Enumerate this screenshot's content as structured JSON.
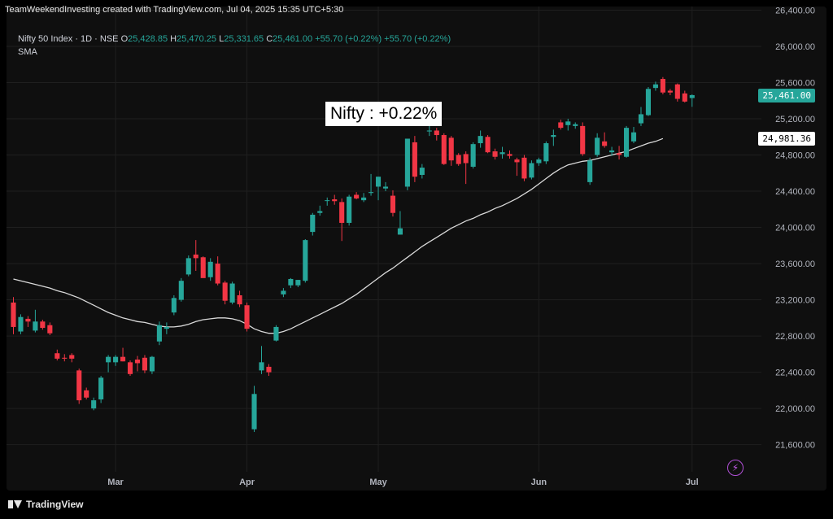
{
  "credit": "TeamWeekendInvesting created with TradingView.com, Jul 04, 2025 15:35 UTC+5:30",
  "legend": {
    "symbol": "Nifty 50 Index · 1D · NSE",
    "open_label": "O",
    "open": "25,428.85",
    "high_label": "H",
    "high": "25,470.25",
    "low_label": "L",
    "low": "25,331.65",
    "close_label": "C",
    "close": "25,461.00",
    "change": "+55.70 (+0.22%)",
    "change2": "+55.70 (+0.22%)",
    "indicator": "SMA"
  },
  "annotation": "Nifty : +0.22%",
  "last_price_tag": "25,461.00",
  "sma_tag": "24,981.36",
  "footer_brand": "TradingView",
  "chart_data": {
    "type": "candlestick",
    "x_tick_labels": [
      "Mar",
      "Apr",
      "May",
      "Jun",
      "Jul"
    ],
    "x_tick_index": [
      14,
      32,
      50,
      72,
      93
    ],
    "y_tick_labels": [
      "21,600.00",
      "22,000.00",
      "22,400.00",
      "22,800.00",
      "23,200.00",
      "23,600.00",
      "24,000.00",
      "24,400.00",
      "24,800.00",
      "25,200.00",
      "25,600.00",
      "26,000.00",
      "26,400.00"
    ],
    "y_tick_values": [
      21600,
      22000,
      22400,
      22800,
      23200,
      23600,
      24000,
      24400,
      24800,
      25200,
      25600,
      26000,
      26400
    ],
    "ylim": [
      21300,
      26440
    ],
    "grid": true,
    "colors": {
      "up": "#26a69a",
      "down": "#f23645",
      "sma": "#d9d9d9",
      "grid": "#1f1f1f",
      "axis_text": "#b2b5be"
    },
    "candles": [
      {
        "o": 23170,
        "h": 23230,
        "l": 22820,
        "c": 22900
      },
      {
        "o": 22850,
        "h": 23040,
        "l": 22820,
        "c": 23010
      },
      {
        "o": 22990,
        "h": 23020,
        "l": 22900,
        "c": 22960
      },
      {
        "o": 22860,
        "h": 23090,
        "l": 22840,
        "c": 22960
      },
      {
        "o": 22960,
        "h": 22980,
        "l": 22870,
        "c": 22890
      },
      {
        "o": 22920,
        "h": 22950,
        "l": 22810,
        "c": 22830
      },
      {
        "o": 22610,
        "h": 22650,
        "l": 22530,
        "c": 22550
      },
      {
        "o": 22560,
        "h": 22600,
        "l": 22520,
        "c": 22550
      },
      {
        "o": 22590,
        "h": 22610,
        "l": 22510,
        "c": 22550
      },
      {
        "o": 22420,
        "h": 22440,
        "l": 22050,
        "c": 22090
      },
      {
        "o": 22200,
        "h": 22230,
        "l": 22100,
        "c": 22120
      },
      {
        "o": 22000,
        "h": 22120,
        "l": 21980,
        "c": 22090
      },
      {
        "o": 22100,
        "h": 22360,
        "l": 22060,
        "c": 22340
      },
      {
        "o": 22510,
        "h": 22590,
        "l": 22400,
        "c": 22570
      },
      {
        "o": 22510,
        "h": 22590,
        "l": 22470,
        "c": 22570
      },
      {
        "o": 22570,
        "h": 22670,
        "l": 22520,
        "c": 22520
      },
      {
        "o": 22510,
        "h": 22530,
        "l": 22360,
        "c": 22380
      },
      {
        "o": 22540,
        "h": 22580,
        "l": 22410,
        "c": 22500
      },
      {
        "o": 22560,
        "h": 22590,
        "l": 22390,
        "c": 22420
      },
      {
        "o": 22410,
        "h": 22580,
        "l": 22380,
        "c": 22570
      },
      {
        "o": 22740,
        "h": 22960,
        "l": 22700,
        "c": 22920
      },
      {
        "o": 22880,
        "h": 22950,
        "l": 22820,
        "c": 22900
      },
      {
        "o": 23060,
        "h": 23250,
        "l": 23030,
        "c": 23220
      },
      {
        "o": 23200,
        "h": 23440,
        "l": 23180,
        "c": 23410
      },
      {
        "o": 23480,
        "h": 23690,
        "l": 23460,
        "c": 23660
      },
      {
        "o": 23700,
        "h": 23860,
        "l": 23520,
        "c": 23660
      },
      {
        "o": 23670,
        "h": 23680,
        "l": 23450,
        "c": 23440
      },
      {
        "o": 23450,
        "h": 23660,
        "l": 23410,
        "c": 23620
      },
      {
        "o": 23600,
        "h": 23680,
        "l": 23360,
        "c": 23380
      },
      {
        "o": 23390,
        "h": 23410,
        "l": 23150,
        "c": 23190
      },
      {
        "o": 23170,
        "h": 23400,
        "l": 23150,
        "c": 23380
      },
      {
        "o": 23250,
        "h": 23300,
        "l": 23120,
        "c": 23150
      },
      {
        "o": 23140,
        "h": 23170,
        "l": 22850,
        "c": 22880
      },
      {
        "o": 21770,
        "h": 22250,
        "l": 21740,
        "c": 22160
      },
      {
        "o": 22420,
        "h": 22690,
        "l": 22380,
        "c": 22510
      },
      {
        "o": 22460,
        "h": 22490,
        "l": 22360,
        "c": 22400
      },
      {
        "o": 22750,
        "h": 22920,
        "l": 22740,
        "c": 22900
      },
      {
        "o": 23260,
        "h": 23330,
        "l": 23230,
        "c": 23300
      },
      {
        "o": 23360,
        "h": 23440,
        "l": 23330,
        "c": 23430
      },
      {
        "o": 23360,
        "h": 23420,
        "l": 23340,
        "c": 23420
      },
      {
        "o": 23410,
        "h": 23870,
        "l": 23390,
        "c": 23860
      },
      {
        "o": 23950,
        "h": 24160,
        "l": 23910,
        "c": 24140
      },
      {
        "o": 24160,
        "h": 24240,
        "l": 24130,
        "c": 24180
      },
      {
        "o": 24300,
        "h": 24330,
        "l": 24240,
        "c": 24300
      },
      {
        "o": 24310,
        "h": 24360,
        "l": 24250,
        "c": 24290
      },
      {
        "o": 24280,
        "h": 24320,
        "l": 23850,
        "c": 24050
      },
      {
        "o": 24050,
        "h": 24360,
        "l": 24020,
        "c": 24340
      },
      {
        "o": 24360,
        "h": 24390,
        "l": 24310,
        "c": 24320
      },
      {
        "o": 24300,
        "h": 24380,
        "l": 24280,
        "c": 24330
      },
      {
        "o": 24380,
        "h": 24590,
        "l": 24350,
        "c": 24390
      },
      {
        "o": 24450,
        "h": 24560,
        "l": 24300,
        "c": 24560
      },
      {
        "o": 24430,
        "h": 24500,
        "l": 24400,
        "c": 24450
      },
      {
        "o": 24350,
        "h": 24410,
        "l": 24120,
        "c": 24160
      },
      {
        "o": 23920,
        "h": 24180,
        "l": 23920,
        "c": 23990
      },
      {
        "o": 24450,
        "h": 24970,
        "l": 24410,
        "c": 24980
      },
      {
        "o": 24940,
        "h": 25010,
        "l": 24500,
        "c": 24560
      },
      {
        "o": 24580,
        "h": 24700,
        "l": 24540,
        "c": 24660
      },
      {
        "o": 25060,
        "h": 25120,
        "l": 25010,
        "c": 25070
      },
      {
        "o": 25070,
        "h": 25100,
        "l": 24960,
        "c": 25020
      },
      {
        "o": 25020,
        "h": 25040,
        "l": 24690,
        "c": 24700
      },
      {
        "o": 24990,
        "h": 25010,
        "l": 24680,
        "c": 24740
      },
      {
        "o": 24800,
        "h": 24820,
        "l": 24680,
        "c": 24700
      },
      {
        "o": 24810,
        "h": 24840,
        "l": 24480,
        "c": 24710
      },
      {
        "o": 24670,
        "h": 24940,
        "l": 24650,
        "c": 24920
      },
      {
        "o": 24930,
        "h": 25070,
        "l": 24880,
        "c": 25010
      },
      {
        "o": 25000,
        "h": 25020,
        "l": 24820,
        "c": 24830
      },
      {
        "o": 24840,
        "h": 24870,
        "l": 24750,
        "c": 24780
      },
      {
        "o": 24810,
        "h": 24890,
        "l": 24760,
        "c": 24830
      },
      {
        "o": 24810,
        "h": 24850,
        "l": 24760,
        "c": 24790
      },
      {
        "o": 24750,
        "h": 24770,
        "l": 24570,
        "c": 24720
      },
      {
        "o": 24770,
        "h": 24800,
        "l": 24510,
        "c": 24540
      },
      {
        "o": 24550,
        "h": 24740,
        "l": 24530,
        "c": 24710
      },
      {
        "o": 24710,
        "h": 24770,
        "l": 24680,
        "c": 24750
      },
      {
        "o": 24730,
        "h": 24950,
        "l": 24700,
        "c": 24930
      },
      {
        "o": 25000,
        "h": 25080,
        "l": 24900,
        "c": 25020
      },
      {
        "o": 25160,
        "h": 25190,
        "l": 25080,
        "c": 25100
      },
      {
        "o": 25130,
        "h": 25200,
        "l": 25070,
        "c": 25170
      },
      {
        "o": 25120,
        "h": 25160,
        "l": 25090,
        "c": 25140
      },
      {
        "o": 25120,
        "h": 25160,
        "l": 24790,
        "c": 24810
      },
      {
        "o": 24500,
        "h": 24770,
        "l": 24470,
        "c": 24740
      },
      {
        "o": 24800,
        "h": 25040,
        "l": 24780,
        "c": 24990
      },
      {
        "o": 24950,
        "h": 25050,
        "l": 24880,
        "c": 24900
      },
      {
        "o": 24830,
        "h": 24890,
        "l": 24790,
        "c": 24850
      },
      {
        "o": 24820,
        "h": 24900,
        "l": 24750,
        "c": 24800
      },
      {
        "o": 24780,
        "h": 25120,
        "l": 24770,
        "c": 25100
      },
      {
        "o": 24950,
        "h": 25110,
        "l": 24930,
        "c": 25050
      },
      {
        "o": 25150,
        "h": 25330,
        "l": 25120,
        "c": 25250
      },
      {
        "o": 25240,
        "h": 25550,
        "l": 25230,
        "c": 25530
      },
      {
        "o": 25540,
        "h": 25610,
        "l": 25510,
        "c": 25580
      },
      {
        "o": 25640,
        "h": 25660,
        "l": 25470,
        "c": 25490
      },
      {
        "o": 25510,
        "h": 25530,
        "l": 25460,
        "c": 25490
      },
      {
        "o": 25580,
        "h": 25590,
        "l": 25390,
        "c": 25420
      },
      {
        "o": 25480,
        "h": 25510,
        "l": 25380,
        "c": 25390
      },
      {
        "o": 25429,
        "h": 25470,
        "l": 25332,
        "c": 25461
      }
    ],
    "sma": [
      23430,
      23410,
      23390,
      23370,
      23350,
      23330,
      23300,
      23280,
      23250,
      23220,
      23180,
      23140,
      23100,
      23060,
      23030,
      23000,
      22980,
      22960,
      22950,
      22930,
      22910,
      22900,
      22900,
      22910,
      22930,
      22960,
      22980,
      22990,
      23000,
      23000,
      22990,
      22970,
      22930,
      22880,
      22850,
      22830,
      22830,
      22850,
      22880,
      22920,
      22960,
      23000,
      23040,
      23080,
      23120,
      23160,
      23210,
      23260,
      23320,
      23380,
      23440,
      23500,
      23550,
      23610,
      23670,
      23730,
      23790,
      23840,
      23890,
      23940,
      23990,
      24030,
      24070,
      24100,
      24140,
      24170,
      24210,
      24240,
      24280,
      24320,
      24370,
      24420,
      24480,
      24540,
      24600,
      24650,
      24690,
      24710,
      24730,
      24740,
      24760,
      24780,
      24800,
      24820,
      24840,
      24870,
      24900,
      24930,
      24950,
      24981.36
    ]
  }
}
